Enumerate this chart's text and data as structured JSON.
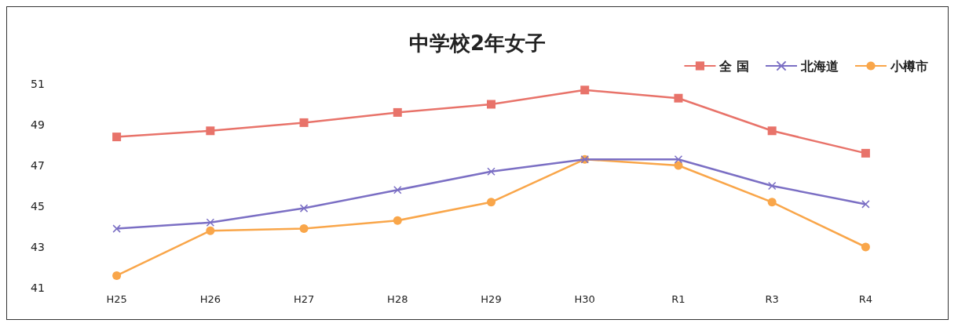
{
  "chart_data": {
    "type": "line",
    "title": "中学校2年女子",
    "categories": [
      "H25",
      "H26",
      "H27",
      "H28",
      "H29",
      "H30",
      "R1",
      "R3",
      "R4"
    ],
    "series": [
      {
        "name": "全 国",
        "color": "#e8736a",
        "marker": "square",
        "values": [
          48.4,
          48.7,
          49.1,
          49.6,
          50.0,
          50.7,
          50.3,
          48.7,
          47.6
        ]
      },
      {
        "name": "北海道",
        "color": "#7b6fc4",
        "marker": "cross",
        "values": [
          43.9,
          44.2,
          44.9,
          45.8,
          46.7,
          47.3,
          47.3,
          46.0,
          45.1
        ]
      },
      {
        "name": "小樽市",
        "color": "#f9a64a",
        "marker": "circle",
        "values": [
          41.6,
          43.8,
          43.9,
          44.3,
          45.2,
          47.3,
          47.0,
          45.2,
          43.0
        ]
      }
    ],
    "ylim": [
      41,
      51
    ],
    "yticks": [
      41,
      43,
      45,
      47,
      49,
      51
    ],
    "grid": false,
    "legend": "top right",
    "line_style": "solid"
  }
}
